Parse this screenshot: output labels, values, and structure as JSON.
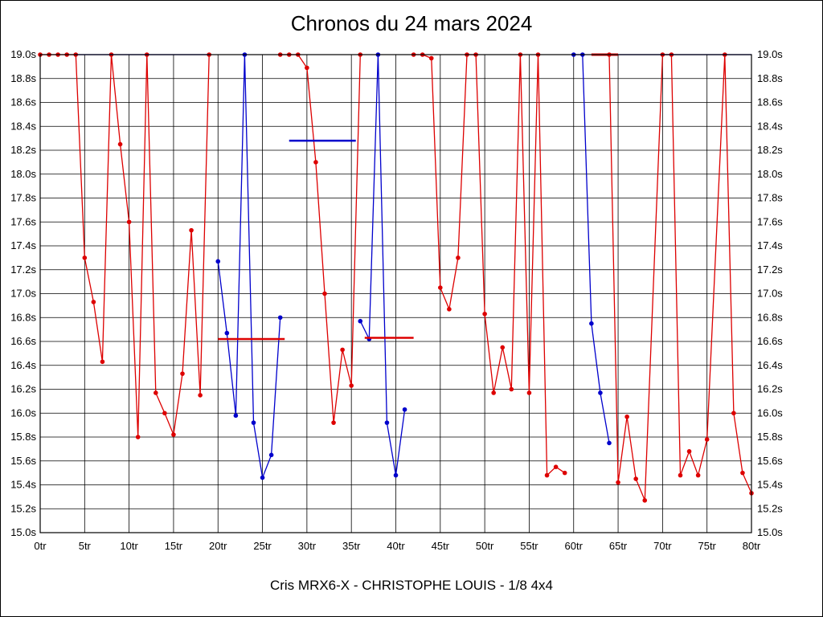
{
  "page": {
    "background": "#ffffff",
    "border_color": "#000000"
  },
  "chart_data": {
    "type": "line",
    "title": "Chronos du 24 mars 2024",
    "subtitle": "Cris MRX6-X - CHRISTOPHE LOUIS - 1/8 4x4",
    "xlabel": "",
    "ylabel": "",
    "xlim": [
      0,
      80
    ],
    "xstep": 5,
    "xunit": "tr",
    "ylim": [
      15.0,
      19.0
    ],
    "ystep": 0.2,
    "yunit": "s",
    "grid": true,
    "grid_color": "#000000",
    "clip_value": 19.0,
    "legend_position": "none",
    "series": [
      {
        "name": "manche-rouge",
        "color": "#dd0000",
        "segments": [
          {
            "markers": true,
            "points": [
              [
                0,
                19
              ],
              [
                1,
                19
              ],
              [
                2,
                19
              ],
              [
                3,
                19
              ],
              [
                4,
                19
              ],
              [
                5,
                17.3
              ],
              [
                6,
                16.93
              ],
              [
                7,
                16.43
              ],
              [
                8,
                19
              ],
              [
                9,
                18.25
              ],
              [
                10,
                17.6
              ],
              [
                11,
                15.8
              ],
              [
                12,
                19
              ],
              [
                13,
                16.17
              ],
              [
                14,
                16.0
              ],
              [
                15,
                15.82
              ],
              [
                16,
                16.33
              ],
              [
                17,
                17.53
              ],
              [
                18,
                16.15
              ],
              [
                19,
                19
              ]
            ]
          },
          {
            "markers": true,
            "points": [
              [
                27,
                19
              ],
              [
                28,
                19
              ],
              [
                29,
                19
              ],
              [
                30,
                18.89
              ],
              [
                31,
                18.1
              ],
              [
                32,
                17.0
              ],
              [
                33,
                15.92
              ],
              [
                34,
                16.53
              ],
              [
                35,
                16.23
              ],
              [
                36,
                19
              ]
            ]
          },
          {
            "markers": true,
            "points": [
              [
                42,
                19
              ],
              [
                43,
                19
              ],
              [
                44,
                18.97
              ],
              [
                45,
                17.05
              ],
              [
                46,
                16.87
              ],
              [
                47,
                17.3
              ],
              [
                48,
                19
              ],
              [
                49,
                19
              ],
              [
                50,
                16.83
              ],
              [
                51,
                16.17
              ],
              [
                52,
                16.55
              ],
              [
                53,
                16.2
              ],
              [
                54,
                19
              ],
              [
                55,
                16.17
              ],
              [
                56,
                19
              ],
              [
                57,
                15.48
              ],
              [
                58,
                15.55
              ],
              [
                59,
                15.5
              ]
            ]
          },
          {
            "markers": true,
            "points": [
              [
                64,
                19
              ],
              [
                65,
                15.42
              ],
              [
                66,
                15.97
              ],
              [
                67,
                15.45
              ],
              [
                68,
                15.27
              ],
              [
                70,
                19
              ],
              [
                71,
                19
              ],
              [
                72,
                15.48
              ],
              [
                73,
                15.68
              ],
              [
                74,
                15.48
              ],
              [
                75,
                15.78
              ],
              [
                77,
                19
              ],
              [
                78,
                16.0
              ],
              [
                79,
                15.5
              ],
              [
                80,
                15.33
              ]
            ]
          }
        ]
      },
      {
        "name": "manche-bleue",
        "color": "#0000cc",
        "segments": [
          {
            "markers": false,
            "points": [
              [
                4,
                19
              ],
              [
                19,
                19
              ]
            ]
          },
          {
            "markers": true,
            "points": [
              [
                20,
                17.27
              ],
              [
                21,
                16.67
              ],
              [
                22,
                15.98
              ],
              [
                23,
                19
              ],
              [
                24,
                15.92
              ],
              [
                25,
                15.46
              ],
              [
                26,
                15.65
              ],
              [
                27,
                16.8
              ]
            ]
          },
          {
            "markers": true,
            "points": [
              [
                36,
                16.77
              ],
              [
                37,
                16.62
              ],
              [
                38,
                19
              ],
              [
                39,
                15.92
              ],
              [
                40,
                15.48
              ],
              [
                41,
                16.03
              ]
            ]
          },
          {
            "markers": true,
            "points": [
              [
                60,
                19
              ],
              [
                61,
                19
              ],
              [
                62,
                16.75
              ],
              [
                63,
                16.17
              ],
              [
                64,
                15.75
              ]
            ]
          },
          {
            "markers": false,
            "points": [
              [
                65,
                19
              ],
              [
                80,
                19
              ]
            ]
          }
        ]
      }
    ],
    "average_lines": [
      {
        "color": "#dd0000",
        "value": 16.62,
        "from": 20,
        "to": 27.5,
        "width": 2.5
      },
      {
        "color": "#0000cc",
        "value": 18.28,
        "from": 28,
        "to": 35.5,
        "width": 2.5
      },
      {
        "color": "#dd0000",
        "value": 16.63,
        "from": 36.5,
        "to": 42,
        "width": 2.5
      },
      {
        "color": "#dd0000",
        "value": 19.0,
        "from": 62,
        "to": 65,
        "width": 3
      }
    ]
  }
}
